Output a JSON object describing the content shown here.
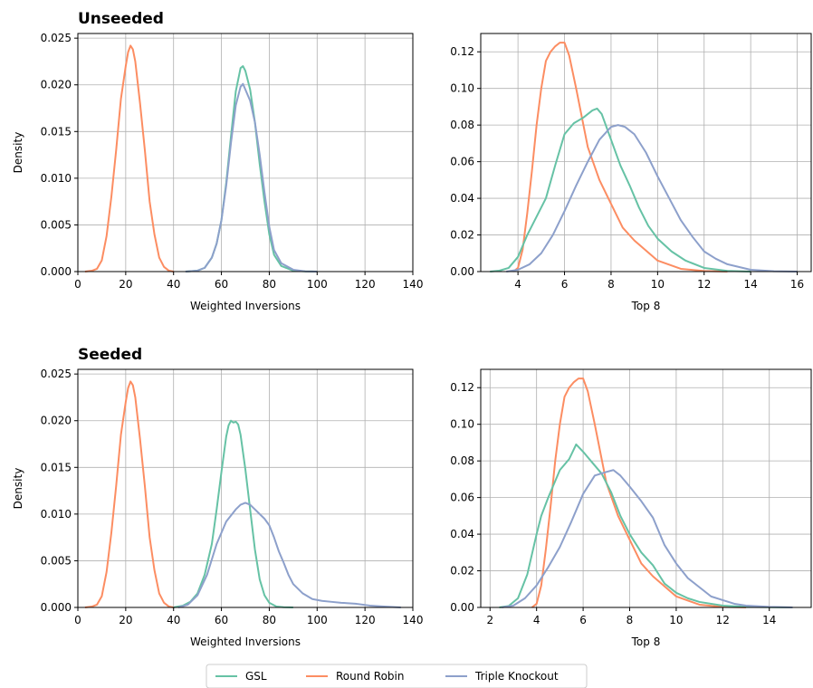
{
  "colors": {
    "GSL": "#66c2a5",
    "Round Robin": "#fc8d62",
    "Triple Knockout": "#8da0cb",
    "grid": "#b0b0b0"
  },
  "legend": {
    "entries": [
      "GSL",
      "Round Robin",
      "Triple Knockout"
    ]
  },
  "chart_data": [
    {
      "type": "line",
      "title": "Unseeded",
      "xlabel": "Weighted Inversions",
      "ylabel": "Density",
      "xlim": [
        0,
        140
      ],
      "ylim": [
        0,
        0.0255
      ],
      "xticks": [
        0,
        20,
        40,
        60,
        80,
        100,
        120,
        140
      ],
      "yticks": [
        0.0,
        0.005,
        0.01,
        0.015,
        0.02,
        0.025
      ],
      "ytick_labels": [
        "0.000",
        "0.005",
        "0.010",
        "0.015",
        "0.020",
        "0.025"
      ],
      "grid": true,
      "series": [
        {
          "name": "Round Robin",
          "x": [
            3,
            6,
            8,
            10,
            12,
            14,
            16,
            18,
            20,
            21,
            22,
            23,
            24,
            26,
            28,
            30,
            32,
            34,
            36,
            38,
            40
          ],
          "y": [
            0.0,
            0.0001,
            0.0003,
            0.0012,
            0.0038,
            0.008,
            0.013,
            0.0185,
            0.022,
            0.0235,
            0.0242,
            0.0238,
            0.0225,
            0.018,
            0.013,
            0.0075,
            0.004,
            0.0015,
            0.0005,
            0.0001,
            0.0
          ]
        },
        {
          "name": "GSL",
          "x": [
            45,
            50,
            53,
            56,
            58,
            60,
            62,
            64,
            66,
            68,
            69,
            70,
            72,
            74,
            76,
            78,
            80,
            82,
            85,
            90,
            95,
            100
          ],
          "y": [
            0.0,
            0.0001,
            0.0004,
            0.0015,
            0.003,
            0.0055,
            0.0095,
            0.0145,
            0.0193,
            0.0218,
            0.022,
            0.0215,
            0.0195,
            0.016,
            0.0115,
            0.0075,
            0.004,
            0.0018,
            0.0006,
            0.0001,
            2e-05,
            0.0
          ]
        },
        {
          "name": "Triple Knockout",
          "x": [
            45,
            50,
            53,
            56,
            58,
            60,
            62,
            64,
            66,
            68,
            69,
            70,
            72,
            74,
            76,
            78,
            80,
            82,
            85,
            90,
            95,
            100
          ],
          "y": [
            0.0,
            0.0001,
            0.0004,
            0.0015,
            0.003,
            0.0055,
            0.0092,
            0.0138,
            0.0178,
            0.0198,
            0.0201,
            0.0195,
            0.0183,
            0.016,
            0.0125,
            0.0085,
            0.0048,
            0.0023,
            0.0009,
            0.0002,
            3e-05,
            0.0
          ]
        }
      ]
    },
    {
      "type": "line",
      "title": "",
      "xlabel": "Top 8",
      "ylabel": "",
      "xlim": [
        2.4,
        16.6
      ],
      "ylim": [
        0,
        0.13
      ],
      "xticks": [
        4,
        6,
        8,
        10,
        12,
        14,
        16
      ],
      "yticks": [
        0.0,
        0.02,
        0.04,
        0.06,
        0.08,
        0.1,
        0.12
      ],
      "ytick_labels": [
        "0.00",
        "0.02",
        "0.04",
        "0.06",
        "0.08",
        "0.10",
        "0.12"
      ],
      "grid": true,
      "series": [
        {
          "name": "Round Robin",
          "x": [
            3.8,
            4.0,
            4.2,
            4.4,
            4.6,
            4.8,
            5.0,
            5.2,
            5.4,
            5.6,
            5.8,
            6.0,
            6.2,
            6.5,
            7.0,
            7.5,
            8.0,
            8.5,
            9.0,
            10.0,
            11.0,
            12.0,
            13.0
          ],
          "y": [
            0.0,
            0.002,
            0.012,
            0.032,
            0.055,
            0.08,
            0.1,
            0.115,
            0.12,
            0.123,
            0.125,
            0.125,
            0.118,
            0.1,
            0.068,
            0.05,
            0.037,
            0.024,
            0.017,
            0.006,
            0.0015,
            0.0003,
            0.0
          ]
        },
        {
          "name": "GSL",
          "x": [
            2.8,
            3.2,
            3.6,
            4.0,
            4.4,
            4.8,
            5.2,
            5.6,
            6.0,
            6.4,
            6.8,
            7.2,
            7.4,
            7.6,
            8.0,
            8.4,
            8.8,
            9.2,
            9.6,
            10.0,
            10.6,
            11.2,
            12.0,
            13.0,
            14.0
          ],
          "y": [
            0.0,
            0.0005,
            0.002,
            0.008,
            0.02,
            0.03,
            0.04,
            0.058,
            0.075,
            0.081,
            0.084,
            0.088,
            0.089,
            0.086,
            0.072,
            0.058,
            0.047,
            0.035,
            0.025,
            0.018,
            0.011,
            0.006,
            0.002,
            0.0004,
            0.0
          ]
        },
        {
          "name": "Triple Knockout",
          "x": [
            3.5,
            4.0,
            4.5,
            5.0,
            5.5,
            6.0,
            6.5,
            7.0,
            7.5,
            8.0,
            8.3,
            8.6,
            9.0,
            9.5,
            10.0,
            10.5,
            11.0,
            11.5,
            12.0,
            12.5,
            13.0,
            14.0,
            15.0,
            16.0
          ],
          "y": [
            0.0,
            0.001,
            0.004,
            0.01,
            0.02,
            0.033,
            0.047,
            0.06,
            0.072,
            0.079,
            0.08,
            0.079,
            0.075,
            0.065,
            0.052,
            0.04,
            0.028,
            0.019,
            0.011,
            0.007,
            0.004,
            0.001,
            0.0002,
            0.0
          ]
        }
      ]
    },
    {
      "type": "line",
      "title": "Seeded",
      "xlabel": "Weighted Inversions",
      "ylabel": "Density",
      "xlim": [
        0,
        140
      ],
      "ylim": [
        0,
        0.0255
      ],
      "xticks": [
        0,
        20,
        40,
        60,
        80,
        100,
        120,
        140
      ],
      "yticks": [
        0.0,
        0.005,
        0.01,
        0.015,
        0.02,
        0.025
      ],
      "ytick_labels": [
        "0.000",
        "0.005",
        "0.010",
        "0.015",
        "0.020",
        "0.025"
      ],
      "grid": true,
      "series": [
        {
          "name": "Round Robin",
          "x": [
            3,
            6,
            8,
            10,
            12,
            14,
            16,
            18,
            20,
            21,
            22,
            23,
            24,
            26,
            28,
            30,
            32,
            34,
            36,
            38,
            40
          ],
          "y": [
            0.0,
            0.0001,
            0.0003,
            0.0012,
            0.0038,
            0.008,
            0.013,
            0.0185,
            0.022,
            0.0235,
            0.0242,
            0.0238,
            0.0225,
            0.018,
            0.013,
            0.0075,
            0.004,
            0.0015,
            0.0005,
            0.0001,
            0.0
          ]
        },
        {
          "name": "GSL",
          "x": [
            40,
            44,
            47,
            50,
            53,
            56,
            58,
            60,
            62,
            63,
            64,
            65,
            66,
            67,
            68,
            70,
            72,
            74,
            76,
            78,
            80,
            83,
            86,
            90
          ],
          "y": [
            0.0,
            0.0002,
            0.0006,
            0.0015,
            0.0035,
            0.0068,
            0.0105,
            0.0145,
            0.0183,
            0.0195,
            0.02,
            0.0198,
            0.0199,
            0.0196,
            0.0185,
            0.0148,
            0.0105,
            0.0062,
            0.003,
            0.0013,
            0.0005,
            0.0001,
            2e-05,
            0.0
          ]
        },
        {
          "name": "Triple Knockout",
          "x": [
            42,
            46,
            50,
            54,
            58,
            62,
            66,
            68,
            70,
            72,
            74,
            76,
            78,
            80,
            82,
            84,
            86,
            88,
            90,
            94,
            98,
            102,
            106,
            110,
            116,
            122,
            128,
            135
          ],
          "y": [
            0.0,
            0.0003,
            0.0013,
            0.0035,
            0.0068,
            0.0092,
            0.0105,
            0.011,
            0.0112,
            0.011,
            0.0105,
            0.01,
            0.0095,
            0.0088,
            0.0075,
            0.006,
            0.0048,
            0.0035,
            0.0025,
            0.0015,
            0.0009,
            0.0007,
            0.0006,
            0.0005,
            0.0004,
            0.0002,
            0.0001,
            0.0
          ]
        }
      ]
    },
    {
      "type": "line",
      "title": "",
      "xlabel": "Top 8",
      "ylabel": "",
      "xlim": [
        1.6,
        15.8
      ],
      "ylim": [
        0,
        0.13
      ],
      "xticks": [
        2,
        4,
        6,
        8,
        10,
        12,
        14
      ],
      "yticks": [
        0.0,
        0.02,
        0.04,
        0.06,
        0.08,
        0.1,
        0.12
      ],
      "ytick_labels": [
        "0.00",
        "0.02",
        "0.04",
        "0.06",
        "0.08",
        "0.10",
        "0.12"
      ],
      "grid": true,
      "series": [
        {
          "name": "Round Robin",
          "x": [
            3.8,
            4.0,
            4.2,
            4.4,
            4.6,
            4.8,
            5.0,
            5.2,
            5.4,
            5.6,
            5.8,
            6.0,
            6.2,
            6.5,
            7.0,
            7.5,
            8.0,
            8.5,
            9.0,
            10.0,
            11.0,
            12.0,
            13.0
          ],
          "y": [
            0.0,
            0.002,
            0.012,
            0.032,
            0.055,
            0.08,
            0.1,
            0.115,
            0.12,
            0.123,
            0.125,
            0.125,
            0.118,
            0.1,
            0.068,
            0.05,
            0.037,
            0.024,
            0.017,
            0.006,
            0.0015,
            0.0003,
            0.0
          ]
        },
        {
          "name": "GSL",
          "x": [
            2.4,
            2.8,
            3.2,
            3.6,
            4.0,
            4.2,
            4.5,
            5.0,
            5.4,
            5.7,
            6.0,
            6.4,
            6.8,
            7.2,
            7.6,
            8.0,
            8.5,
            9.0,
            9.5,
            10.0,
            10.5,
            11.0,
            12.0,
            13.0,
            14.0,
            15.0
          ],
          "y": [
            0.0,
            0.0008,
            0.005,
            0.018,
            0.04,
            0.05,
            0.06,
            0.075,
            0.081,
            0.089,
            0.085,
            0.079,
            0.073,
            0.063,
            0.05,
            0.04,
            0.03,
            0.023,
            0.013,
            0.008,
            0.005,
            0.003,
            0.001,
            0.0003,
            0.0001,
            0.0
          ]
        },
        {
          "name": "Triple Knockout",
          "x": [
            2.5,
            3.0,
            3.5,
            4.0,
            4.5,
            5.0,
            5.5,
            6.0,
            6.5,
            7.0,
            7.3,
            7.6,
            8.0,
            8.5,
            9.0,
            9.5,
            10.0,
            10.5,
            11.0,
            11.5,
            12.0,
            12.5,
            13.0,
            14.0,
            15.0
          ],
          "y": [
            0.0,
            0.001,
            0.005,
            0.012,
            0.022,
            0.033,
            0.047,
            0.062,
            0.072,
            0.074,
            0.075,
            0.072,
            0.066,
            0.058,
            0.049,
            0.034,
            0.024,
            0.016,
            0.011,
            0.006,
            0.004,
            0.002,
            0.001,
            0.0003,
            0.0
          ]
        }
      ]
    }
  ]
}
